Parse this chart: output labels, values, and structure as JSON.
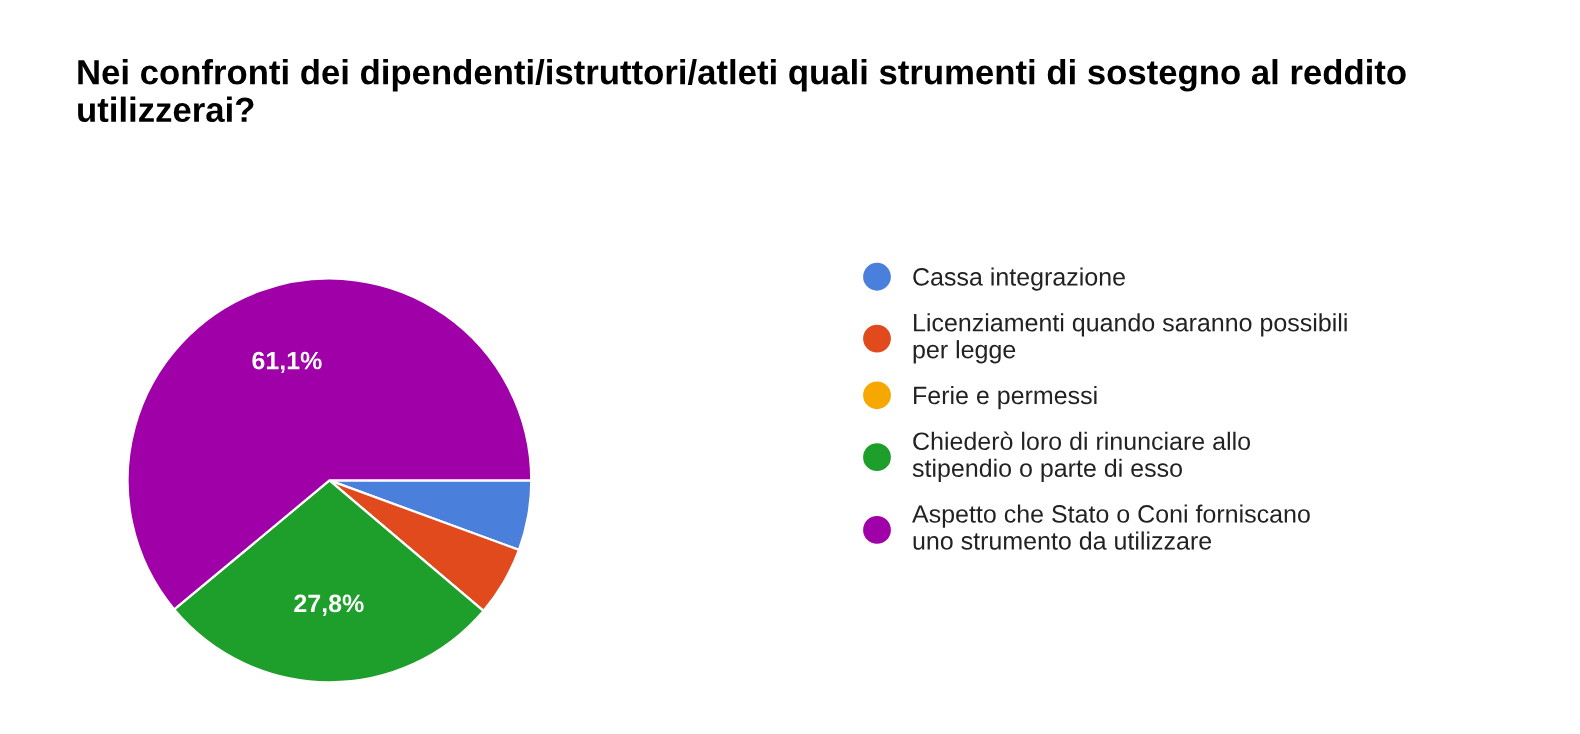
{
  "chart_data": {
    "type": "pie",
    "title": "Nei confronti dei dipendenti/istruttori/atleti quali strumenti di sostegno al reddito utilizzerai?",
    "categories": [
      "Cassa integrazione",
      "Licenziamenti quando saranno possibili per legge",
      "Ferie e permessi",
      "Chiederò loro di rinunciare allo stipendio o parte di esso",
      "Aspetto che Stato o Coni forniscano uno strumento da utilizzare"
    ],
    "values": [
      5.6,
      5.6,
      0,
      27.8,
      61.1
    ],
    "colors": [
      "#4a7fdc",
      "#e04a1c",
      "#f6a800",
      "#1e9e2a",
      "#a000a8"
    ],
    "value_labels": [
      null,
      null,
      null,
      "27,8%",
      "61,1%"
    ],
    "legend": "right"
  }
}
